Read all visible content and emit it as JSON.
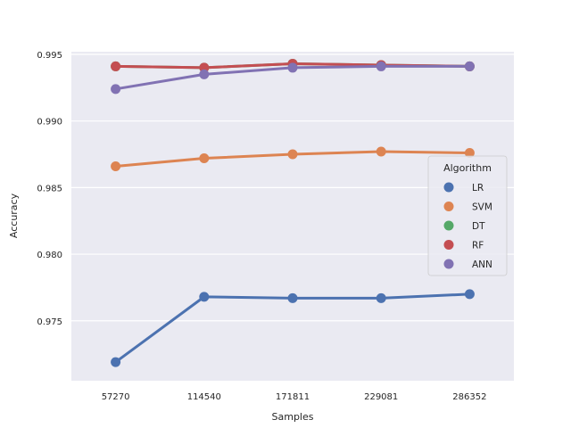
{
  "chart_data": {
    "type": "line",
    "title": "",
    "xlabel": "Samples",
    "ylabel": "Accuracy",
    "categories": [
      "57270",
      "114540",
      "171811",
      "229081",
      "286352"
    ],
    "ylim": [
      0.9705,
      0.9952
    ],
    "yticks": [
      "0.975",
      "0.980",
      "0.985",
      "0.990",
      "0.995"
    ],
    "grid": true,
    "legend": {
      "title": "Algorithm",
      "placement": "center-right"
    },
    "series": [
      {
        "name": "LR",
        "color": "#4c72b0",
        "values": [
          0.9719,
          0.9768,
          0.9767,
          0.9767,
          0.977
        ]
      },
      {
        "name": "SVM",
        "color": "#dd8452",
        "values": [
          0.9866,
          0.9872,
          0.9875,
          0.9877,
          0.9876
        ]
      },
      {
        "name": "DT",
        "color": "#55a868",
        "values": [
          0.9941,
          0.994,
          0.9943,
          0.9942,
          0.9941
        ]
      },
      {
        "name": "RF",
        "color": "#c44e52",
        "values": [
          0.9941,
          0.994,
          0.9943,
          0.9942,
          0.9941
        ]
      },
      {
        "name": "ANN",
        "color": "#8172b3",
        "values": [
          0.9924,
          0.9935,
          0.994,
          0.9941,
          0.9941
        ]
      }
    ]
  }
}
